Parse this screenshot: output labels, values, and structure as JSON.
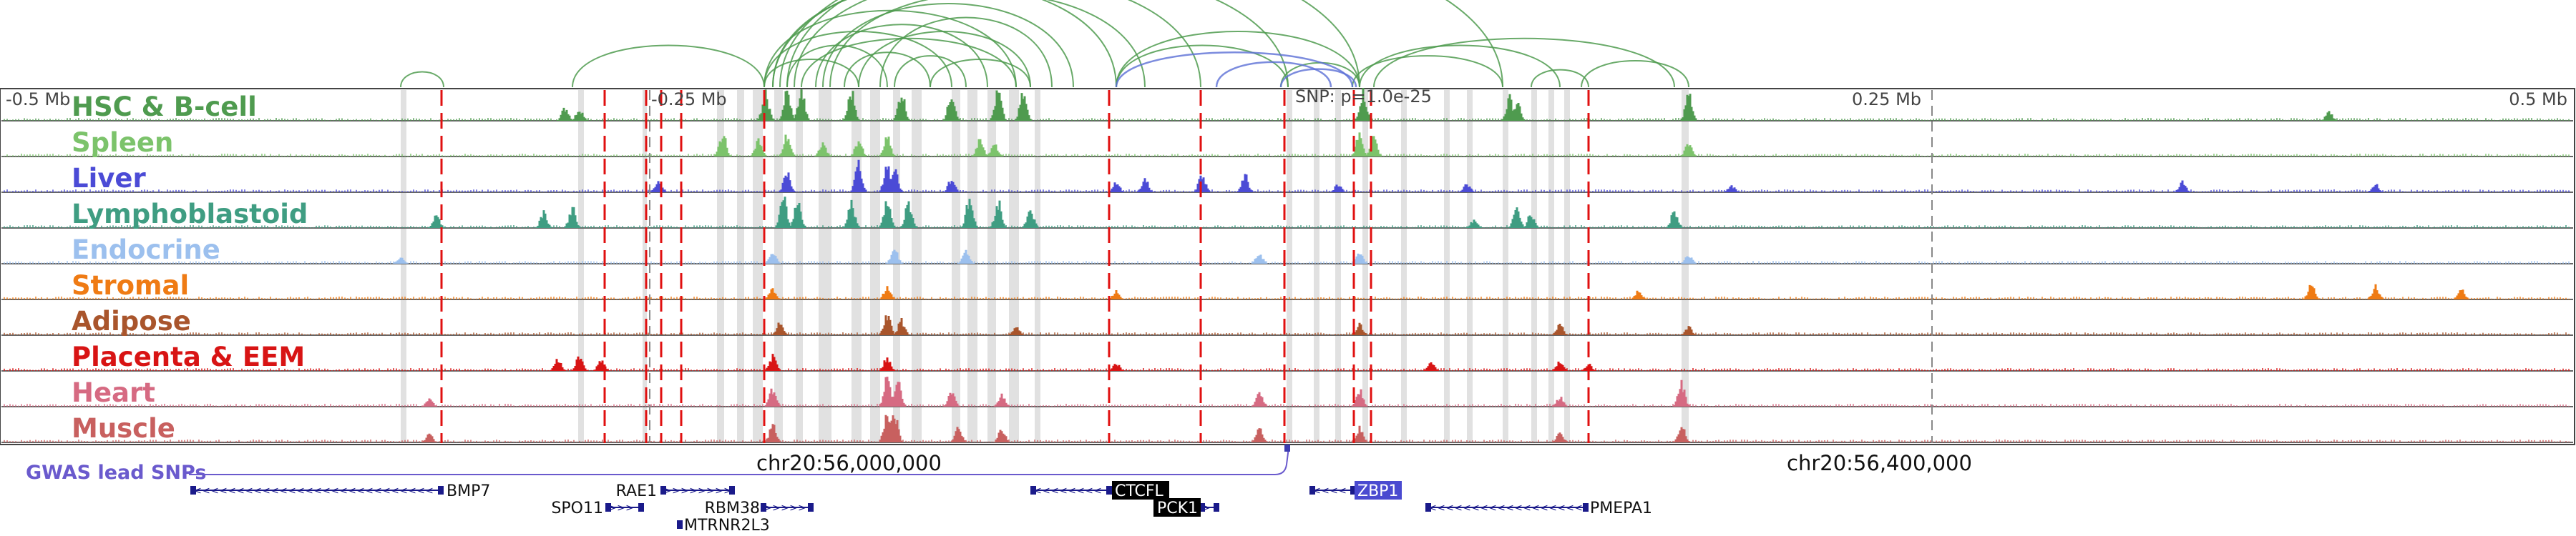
{
  "tracks": [
    {
      "label": "HSC & B-cell",
      "color": "#4f9b4f"
    },
    {
      "label": "Spleen",
      "color": "#7cc36b"
    },
    {
      "label": "Liver",
      "color": "#4b4bd6"
    },
    {
      "label": "Lymphoblastoid",
      "color": "#3f9d82"
    },
    {
      "label": "Endocrine",
      "color": "#9cc0ee"
    },
    {
      "label": "Stromal",
      "color": "#ef7b14"
    },
    {
      "label": "Adipose",
      "color": "#a9552c"
    },
    {
      "label": "Placenta & EEM",
      "color": "#d81414"
    },
    {
      "label": "Heart",
      "color": "#d66a82"
    },
    {
      "label": "Muscle",
      "color": "#c8605f"
    }
  ],
  "scale": {
    "left": "-0.5 Mb",
    "mid_left": "-0.25 Mb",
    "mid_right": "0.25 Mb",
    "right": "0.5 Mb",
    "snp": "SNP: p=1.0e-25"
  },
  "coordinates": [
    "chr20:56,000,000",
    "chr20:56,400,000"
  ],
  "gwas_label": "GWAS lead SNPs",
  "genes": [
    {
      "name": "BMP7",
      "strand": "-",
      "highlight": "none"
    },
    {
      "name": "RAE1",
      "strand": "+",
      "highlight": "none"
    },
    {
      "name": "SPO11",
      "strand": "+",
      "highlight": "none"
    },
    {
      "name": "RBM38",
      "strand": "+",
      "highlight": "none"
    },
    {
      "name": "MTRNR2L3",
      "strand": "+",
      "highlight": "none"
    },
    {
      "name": "CTCFL",
      "strand": "-",
      "highlight": "black"
    },
    {
      "name": "PCK1",
      "strand": "+",
      "highlight": "black"
    },
    {
      "name": "ZBP1",
      "strand": "-",
      "highlight": "blue"
    },
    {
      "name": "PMEPA1",
      "strand": "-",
      "highlight": "none"
    }
  ],
  "colors": {
    "loop": "#4f9b4f",
    "loop_snp": "#5b6fd6",
    "red_line": "#e01010",
    "gray_band": "#c8c8c8",
    "gwas": "#6a5acd",
    "gene_blue": "#1a1a8a",
    "highlight_blue": "#4a4ad0"
  }
}
